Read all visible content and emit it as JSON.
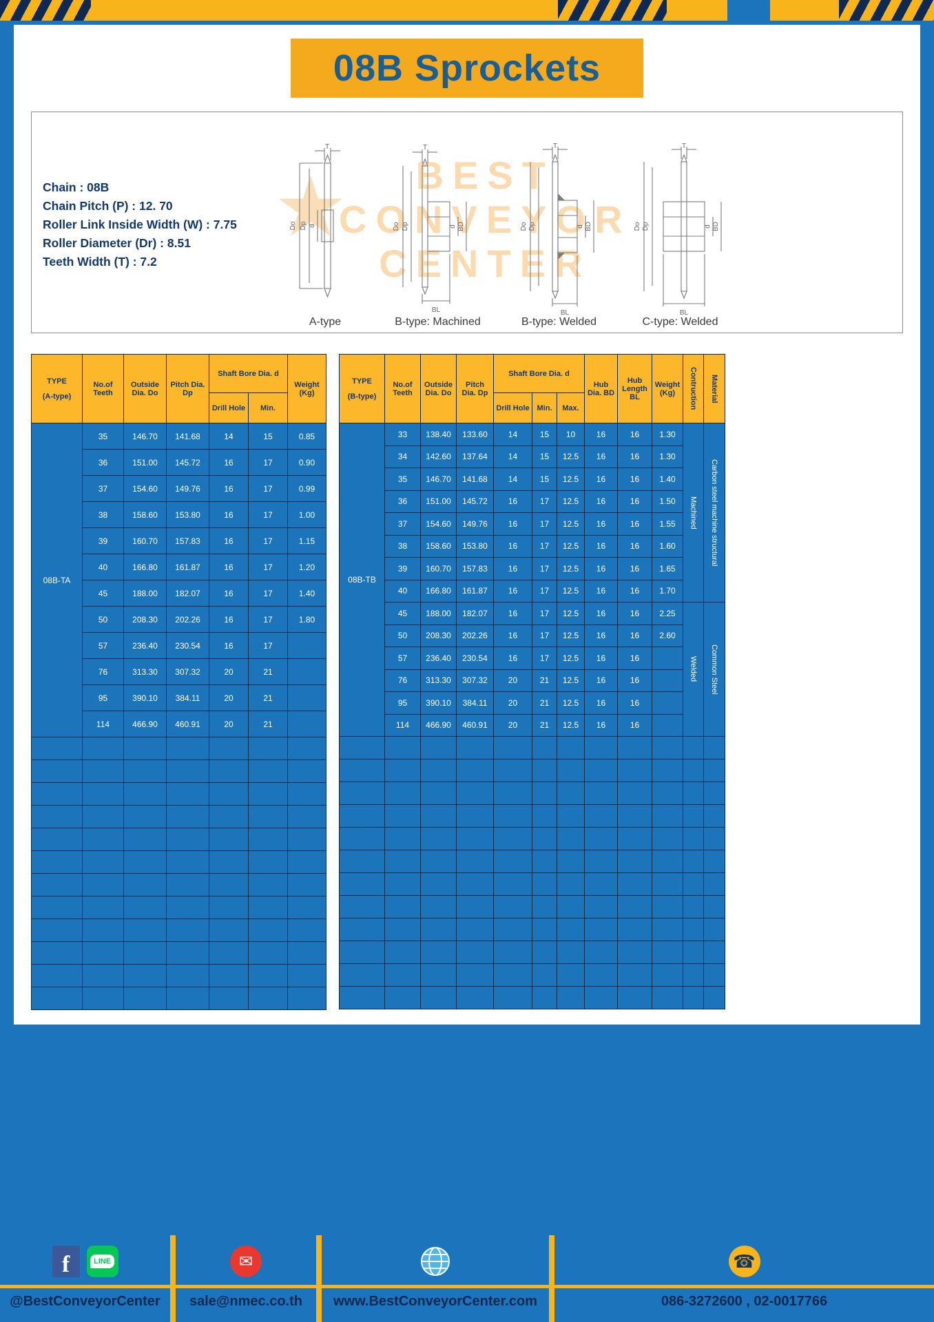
{
  "page": {
    "title": "08B Sprockets"
  },
  "specs": {
    "lines": [
      "Chain : 08B",
      "Chain Pitch (P) : 12. 70",
      "Roller Link Inside Width (W) : 7.75",
      "Roller Diameter (Dr) : 8.51",
      "Teeth Width (T) : 7.2"
    ]
  },
  "drawings": {
    "watermark_star": "★",
    "watermark_lines": [
      "BEST",
      "CONVEYOR",
      "CENTER"
    ],
    "captions": [
      "A-type",
      "B-type: Machined",
      "B-type: Welded",
      "C-type: Welded"
    ],
    "dims": {
      "t": "T",
      "do": "Do",
      "dp": "Dp",
      "d": "d",
      "bd": "BD",
      "bl": "BL"
    }
  },
  "table_a": {
    "type_header": "TYPE",
    "type_sub": "(A-type)",
    "type_value": "08B-TA",
    "headers": {
      "teeth": "No.of Teeth",
      "outside": "Outside Dia. Do",
      "pitch": "Pitch Dia. Dp",
      "bore_group": "Shaft Bore Dia. d",
      "drill": "Drill Hole",
      "min": "Min.",
      "weight": "Weight (Kg)"
    },
    "rows": [
      [
        "35",
        "146.70",
        "141.68",
        "14",
        "15",
        "0.85"
      ],
      [
        "36",
        "151.00",
        "145.72",
        "16",
        "17",
        "0.90"
      ],
      [
        "37",
        "154.60",
        "149.76",
        "16",
        "17",
        "0.99"
      ],
      [
        "38",
        "158.60",
        "153.80",
        "16",
        "17",
        "1.00"
      ],
      [
        "39",
        "160.70",
        "157.83",
        "16",
        "17",
        "1.15"
      ],
      [
        "40",
        "166.80",
        "161.87",
        "16",
        "17",
        "1.20"
      ],
      [
        "45",
        "188.00",
        "182.07",
        "16",
        "17",
        "1.40"
      ],
      [
        "50",
        "208.30",
        "202.26",
        "16",
        "17",
        "1.80"
      ],
      [
        "57",
        "236.40",
        "230.54",
        "16",
        "17",
        ""
      ],
      [
        "76",
        "313.30",
        "307.32",
        "20",
        "21",
        ""
      ],
      [
        "95",
        "390.10",
        "384.11",
        "20",
        "21",
        ""
      ],
      [
        "114",
        "466.90",
        "460.91",
        "20",
        "21",
        ""
      ]
    ],
    "empty_rows": 12
  },
  "table_b": {
    "type_header": "TYPE",
    "type_sub": "(B-type)",
    "type_value": "08B-TB",
    "headers": {
      "teeth": "No.of Teeth",
      "outside": "Outside Dia. Do",
      "pitch": "Pitch Dia. Dp",
      "bore_group": "Shaft Bore Dia. d",
      "drill": "Drill Hole",
      "min": "Min.",
      "max": "Max.",
      "hub_dia": "Hub Dia. BD",
      "hub_len": "Hub Length BL",
      "weight": "Weight (Kg)",
      "construction": "Contruction",
      "material": "Material"
    },
    "rows": [
      [
        "33",
        "138.40",
        "133.60",
        "14",
        "15",
        "10",
        "16",
        "16",
        "1.30"
      ],
      [
        "34",
        "142.60",
        "137.64",
        "14",
        "15",
        "12.5",
        "16",
        "16",
        "1.30"
      ],
      [
        "35",
        "146.70",
        "141.68",
        "14",
        "15",
        "12.5",
        "16",
        "16",
        "1.40"
      ],
      [
        "36",
        "151.00",
        "145.72",
        "16",
        "17",
        "12.5",
        "16",
        "16",
        "1.50"
      ],
      [
        "37",
        "154.60",
        "149.76",
        "16",
        "17",
        "12.5",
        "16",
        "16",
        "1.55"
      ],
      [
        "38",
        "158.60",
        "153.80",
        "16",
        "17",
        "12.5",
        "16",
        "16",
        "1.60"
      ],
      [
        "39",
        "160.70",
        "157.83",
        "16",
        "17",
        "12.5",
        "16",
        "16",
        "1.65"
      ],
      [
        "40",
        "166.80",
        "161.87",
        "16",
        "17",
        "12.5",
        "16",
        "16",
        "1.70"
      ],
      [
        "45",
        "188.00",
        "182.07",
        "16",
        "17",
        "12.5",
        "16",
        "16",
        "2.25"
      ],
      [
        "50",
        "208.30",
        "202.26",
        "16",
        "17",
        "12.5",
        "16",
        "16",
        "2.60"
      ],
      [
        "57",
        "236.40",
        "230.54",
        "16",
        "17",
        "12.5",
        "16",
        "16",
        ""
      ],
      [
        "76",
        "313.30",
        "307.32",
        "20",
        "21",
        "12.5",
        "16",
        "16",
        ""
      ],
      [
        "95",
        "390.10",
        "384.11",
        "20",
        "21",
        "12.5",
        "16",
        "16",
        ""
      ],
      [
        "114",
        "466.90",
        "460.91",
        "20",
        "21",
        "12.5",
        "16",
        "16",
        ""
      ]
    ],
    "construction_spans": [
      {
        "label": "Machined",
        "span": 8
      },
      {
        "label": "Welded",
        "span": 6
      }
    ],
    "material_spans": [
      {
        "label": "Carbon steel  machine structural",
        "span": 8
      },
      {
        "label": "Common  Steel",
        "span": 6
      }
    ],
    "empty_rows": 12
  },
  "footer": {
    "glyphs": {
      "facebook": "f",
      "line": "LINE",
      "mail": "✉",
      "phone": "☎"
    },
    "sections": [
      {
        "label": "@BestConveyorCenter"
      },
      {
        "label": "sale@nmec.co.th"
      },
      {
        "label": "www.BestConveyorCenter.com"
      },
      {
        "label": "086-3272600 , 02-0017766"
      }
    ]
  }
}
